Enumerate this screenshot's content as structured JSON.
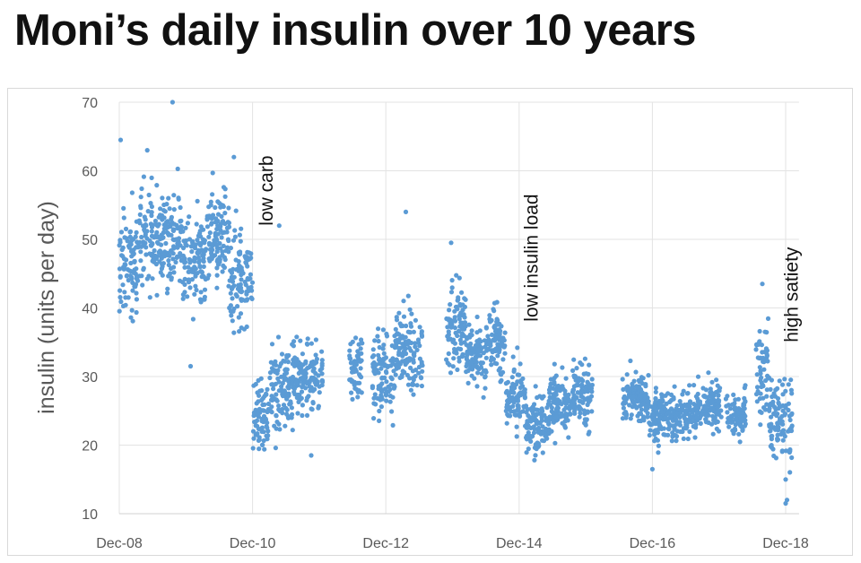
{
  "chart_data": {
    "type": "scatter",
    "title": "Moni’s daily insulin over 10 years",
    "xlabel": "",
    "ylabel": "insulin (units per day)",
    "xlim": [
      0,
      10.2
    ],
    "ylim": [
      10,
      70
    ],
    "yticks": [
      10,
      20,
      30,
      40,
      50,
      60,
      70
    ],
    "xticks": [
      {
        "label": "Dec-08",
        "x": 0
      },
      {
        "label": "Dec-10",
        "x": 2
      },
      {
        "label": "Dec-12",
        "x": 4
      },
      {
        "label": "Dec-14",
        "x": 6
      },
      {
        "label": "Dec-16",
        "x": 8
      },
      {
        "label": "Dec-18",
        "x": 10
      }
    ],
    "grid": true,
    "marker_color": "#5b9bd5",
    "annotations": [
      {
        "text": "low carb",
        "x": 2.3,
        "y": 52
      },
      {
        "text": "low insulin load",
        "x": 6.28,
        "y": 38
      },
      {
        "text": "high satiety",
        "x": 10.18,
        "y": 35
      }
    ],
    "segments": [
      {
        "start": 0.0,
        "end": 0.3,
        "mean": 46,
        "spread": 4.5
      },
      {
        "start": 0.3,
        "end": 0.65,
        "mean": 50,
        "spread": 4.5
      },
      {
        "start": 0.65,
        "end": 0.95,
        "mean": 50,
        "spread": 4.5
      },
      {
        "start": 0.95,
        "end": 1.3,
        "mean": 47,
        "spread": 4.5
      },
      {
        "start": 1.3,
        "end": 1.65,
        "mean": 51,
        "spread": 4.0
      },
      {
        "start": 1.65,
        "end": 2.0,
        "mean": 44,
        "spread": 4.5
      },
      {
        "start": 2.0,
        "end": 2.25,
        "mean": 24,
        "spread": 3.5
      },
      {
        "start": 2.25,
        "end": 2.6,
        "mean": 28,
        "spread": 3.5
      },
      {
        "start": 2.6,
        "end": 3.05,
        "mean": 30,
        "spread": 3.5
      },
      {
        "start": 3.45,
        "end": 3.65,
        "mean": 31,
        "spread": 3.5
      },
      {
        "start": 3.8,
        "end": 4.15,
        "mean": 31,
        "spread": 3.5
      },
      {
        "start": 4.15,
        "end": 4.55,
        "mean": 34,
        "spread": 4.0
      },
      {
        "start": 4.9,
        "end": 5.2,
        "mean": 37,
        "spread": 4.0
      },
      {
        "start": 5.2,
        "end": 5.5,
        "mean": 33,
        "spread": 3.0
      },
      {
        "start": 5.5,
        "end": 5.8,
        "mean": 35,
        "spread": 3.0
      },
      {
        "start": 5.8,
        "end": 6.1,
        "mean": 27,
        "spread": 3.0
      },
      {
        "start": 6.1,
        "end": 6.45,
        "mean": 23,
        "spread": 2.5
      },
      {
        "start": 6.45,
        "end": 6.8,
        "mean": 26,
        "spread": 3.0
      },
      {
        "start": 6.8,
        "end": 7.1,
        "mean": 27,
        "spread": 3.5
      },
      {
        "start": 7.55,
        "end": 7.95,
        "mean": 27,
        "spread": 2.5
      },
      {
        "start": 7.95,
        "end": 8.4,
        "mean": 24,
        "spread": 2.5
      },
      {
        "start": 8.4,
        "end": 8.65,
        "mean": 25,
        "spread": 2.5
      },
      {
        "start": 8.65,
        "end": 9.05,
        "mean": 26,
        "spread": 2.5
      },
      {
        "start": 9.1,
        "end": 9.4,
        "mean": 24,
        "spread": 2.0
      },
      {
        "start": 9.55,
        "end": 9.75,
        "mean": 31,
        "spread": 5.0
      },
      {
        "start": 9.75,
        "end": 10.1,
        "mean": 24,
        "spread": 4.0
      }
    ],
    "outliers": [
      {
        "x": 0.02,
        "y": 64.5
      },
      {
        "x": 0.42,
        "y": 63
      },
      {
        "x": 0.8,
        "y": 70
      },
      {
        "x": 1.07,
        "y": 31.5
      },
      {
        "x": 1.72,
        "y": 62
      },
      {
        "x": 2.4,
        "y": 52
      },
      {
        "x": 2.88,
        "y": 18.5
      },
      {
        "x": 4.3,
        "y": 54
      },
      {
        "x": 4.98,
        "y": 49.5
      },
      {
        "x": 8.0,
        "y": 16.5
      },
      {
        "x": 9.65,
        "y": 43.5
      },
      {
        "x": 10.0,
        "y": 11.5
      },
      {
        "x": 10.02,
        "y": 12
      },
      {
        "x": 10.0,
        "y": 15
      }
    ]
  }
}
